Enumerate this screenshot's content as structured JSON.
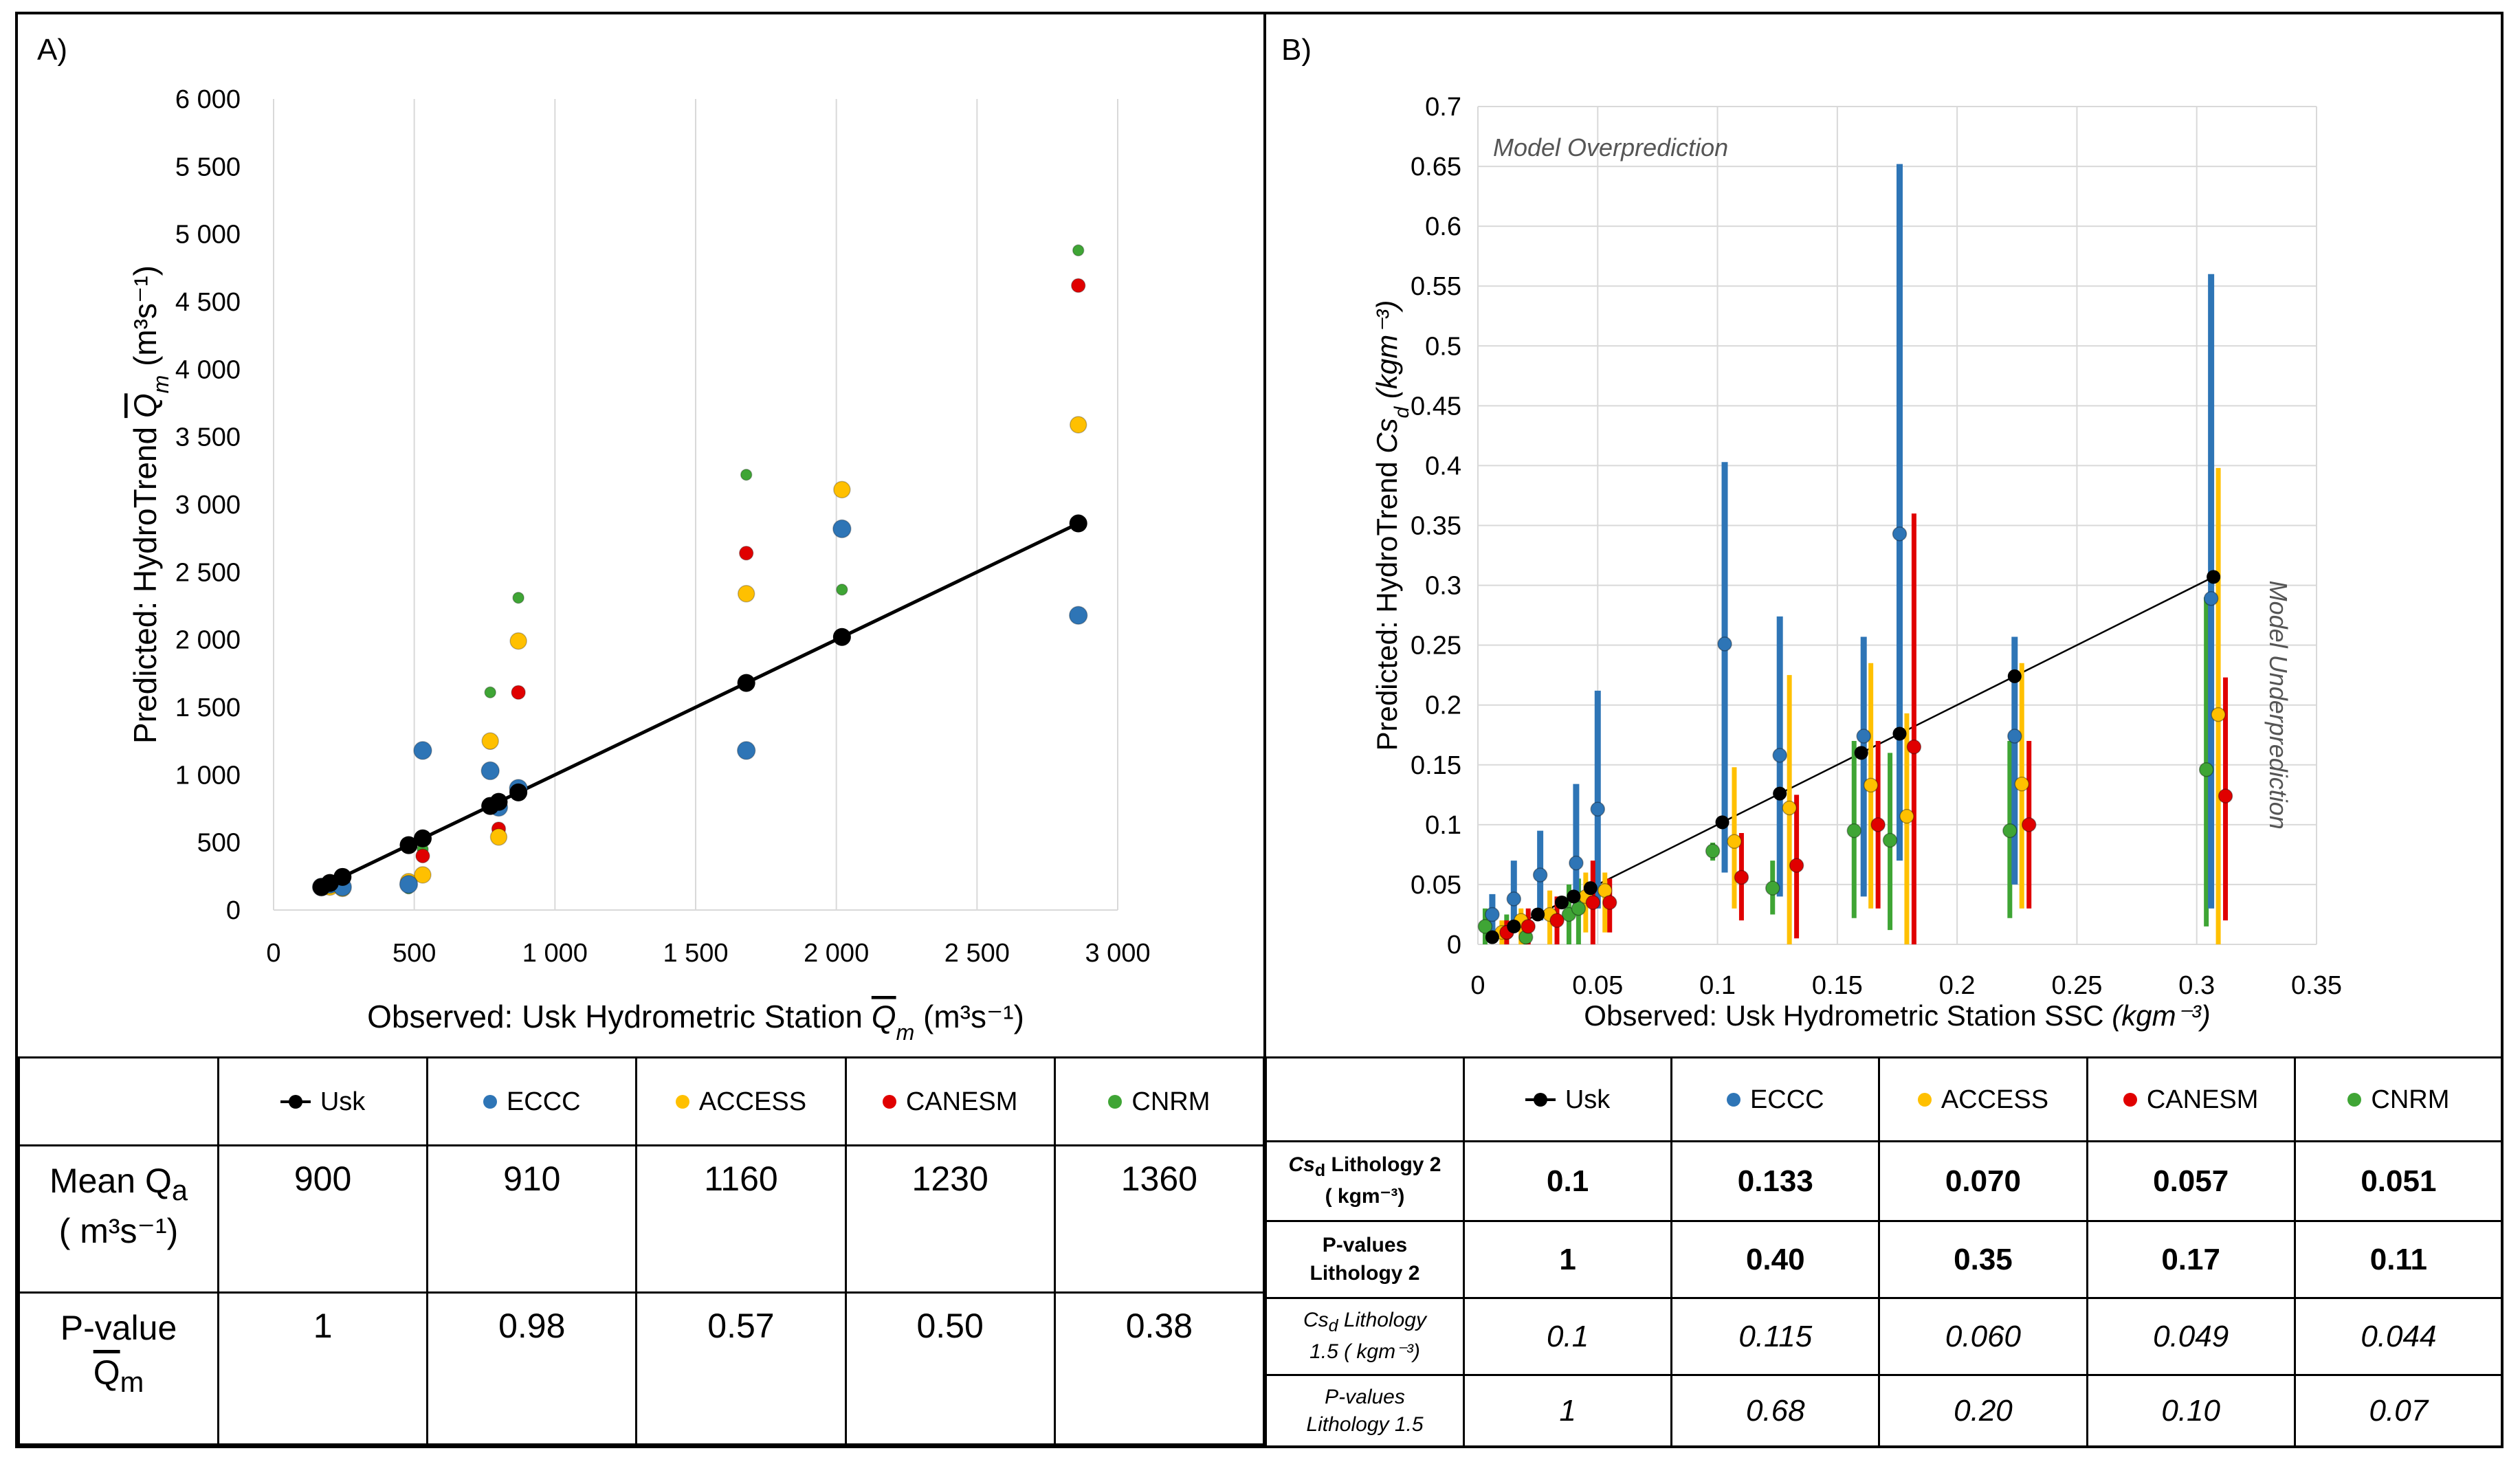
{
  "panel_a": {
    "label": "A)",
    "table": {
      "legend": [
        {
          "name": "Usk",
          "color": "#000000",
          "type": "line"
        },
        {
          "name": "ECCC",
          "color": "#2E75B6",
          "type": "dot"
        },
        {
          "name": "ACCESS",
          "color": "#FFC000",
          "type": "dot"
        },
        {
          "name": "CANESM",
          "color": "#E00000",
          "type": "dot"
        },
        {
          "name": "CNRM",
          "color": "#3FA535",
          "type": "dot"
        }
      ],
      "rows": [
        {
          "label_main": "Mean Q",
          "label_sub": "a",
          "label_unit": "( m³s⁻¹)",
          "values": [
            "900",
            "910",
            "1160",
            "1230",
            "1360"
          ]
        },
        {
          "label_main": "P-value",
          "label_over": "Q",
          "label_sub": "m",
          "values": [
            "1",
            "0.98",
            "0.57",
            "0.50",
            "0.38"
          ]
        }
      ]
    }
  },
  "panel_b": {
    "label": "B)",
    "region_over": "Model Overprediction",
    "region_under": "Model Underprediction",
    "table": {
      "legend": [
        {
          "name": "Usk",
          "color": "#000000",
          "type": "line"
        },
        {
          "name": "ECCC",
          "color": "#2E75B6",
          "type": "dot"
        },
        {
          "name": "ACCESS",
          "color": "#FFC000",
          "type": "dot"
        },
        {
          "name": "CANESM",
          "color": "#E00000",
          "type": "dot"
        },
        {
          "name": "CNRM",
          "color": "#3FA535",
          "type": "dot"
        }
      ],
      "rows": [
        {
          "label_l1": "Cs",
          "label_sub": "d",
          "label_l1b": " Lithology 2",
          "label_l2": "( kgm⁻³)",
          "values": [
            "0.1",
            "0.133",
            "0.070",
            "0.057",
            "0.051"
          ]
        },
        {
          "label_l1": "P-values",
          "label_l2": "Lithology 2",
          "values": [
            "1",
            "0.40",
            "0.35",
            "0.17",
            "0.11"
          ]
        },
        {
          "label_l1": "Cs",
          "label_sub": "d",
          "label_l1b": " Lithology",
          "label_l2": "1.5 ( kgm⁻³)",
          "values": [
            "0.1",
            "0.115",
            "0.060",
            "0.049",
            "0.044"
          ]
        },
        {
          "label_l1": "P-values",
          "label_l2": "Lithology 1.5",
          "values": [
            "1",
            "0.68",
            "0.20",
            "0.10",
            "0.07"
          ]
        }
      ]
    }
  },
  "chart_data": [
    {
      "type": "scatter",
      "xlabel": "Observed: Usk Hydrometric Station Q̄m (m³s⁻¹)",
      "ylabel": "Predicted: HydroTrend Q̄m (m³s⁻¹)",
      "xlim": [
        0,
        3000
      ],
      "ylim": [
        0,
        6000
      ],
      "x_ticks": [
        0,
        500,
        1000,
        1500,
        2000,
        2500,
        3000
      ],
      "x_tick_labels": [
        "0",
        "500",
        "1 000",
        "1 500",
        "2 000",
        "2 500",
        "3 000"
      ],
      "y_ticks": [
        0,
        500,
        1000,
        1500,
        2000,
        2500,
        3000,
        3500,
        4000,
        4500,
        5000,
        5500,
        6000
      ],
      "y_tick_labels": [
        "0",
        "500",
        "1 000",
        "1 500",
        "2 000",
        "2 500",
        "3 000",
        "3 500",
        "4 000",
        "4 500",
        "5 000",
        "5 500",
        "6 000"
      ],
      "grid": "vertical",
      "x": [
        170,
        200,
        245,
        480,
        530,
        770,
        800,
        870,
        1680,
        2020,
        2860
      ],
      "series": [
        {
          "name": "CNRM",
          "color": "#3FA535",
          "values": [
            170,
            160,
            160,
            160,
            450,
            1610,
            740,
            2310,
            3220,
            2370,
            4880
          ]
        },
        {
          "name": "CANESM",
          "color": "#E00000",
          "values": [
            170,
            170,
            170,
            200,
            400,
            1240,
            600,
            1610,
            2640,
            2820,
            4620
          ]
        },
        {
          "name": "ACCESS",
          "color": "#FFC000",
          "values": [
            170,
            170,
            160,
            210,
            260,
            1250,
            540,
            1990,
            2340,
            3110,
            3590
          ]
        },
        {
          "name": "ECCC",
          "color": "#2E75B6",
          "values": [
            170,
            190,
            170,
            190,
            1180,
            1030,
            760,
            900,
            1180,
            2820,
            2180
          ]
        },
        {
          "name": "Usk",
          "color": "#000000",
          "values": [
            170,
            200,
            245,
            480,
            530,
            770,
            800,
            870,
            1680,
            2020,
            2860
          ]
        }
      ]
    },
    {
      "type": "scatter",
      "xlabel": "Observed: Usk Hydrometric Station SSC (kgm⁻³)",
      "ylabel": "Predicted: HydroTrend Csd (kgm⁻³)",
      "xlim": [
        0,
        0.35
      ],
      "ylim": [
        0,
        0.7
      ],
      "x_ticks": [
        0,
        0.05,
        0.1,
        0.15,
        0.2,
        0.25,
        0.3,
        0.35
      ],
      "x_tick_labels": [
        "0",
        "0.05",
        "0.1",
        "0.15",
        "0.2",
        "0.25",
        "0.3",
        "0.35"
      ],
      "y_ticks": [
        0,
        0.05,
        0.1,
        0.15,
        0.2,
        0.25,
        0.3,
        0.35,
        0.4,
        0.45,
        0.5,
        0.55,
        0.6,
        0.65,
        0.7
      ],
      "y_tick_labels": [
        "0",
        "0.05",
        "0.1",
        "0.15",
        "0.2",
        "0.25",
        "0.3",
        "0.35",
        "0.4",
        "0.45",
        "0.5",
        "0.55",
        "0.6",
        "0.65",
        "0.7"
      ],
      "grid": "both",
      "usk": {
        "x": [
          0.006,
          0.015,
          0.025,
          0.035,
          0.04,
          0.047,
          0.102,
          0.126,
          0.16,
          0.176,
          0.224,
          0.307
        ],
        "y": [
          0.006,
          0.015,
          0.025,
          0.035,
          0.04,
          0.047,
          0.102,
          0.126,
          0.16,
          0.176,
          0.224,
          0.307
        ]
      },
      "series": [
        {
          "name": "CNRM",
          "color": "#3FA535",
          "x": [
            0.003,
            0.012,
            0.02,
            0.038,
            0.042,
            0.098,
            0.123,
            0.157,
            0.172,
            0.222,
            0.304
          ],
          "y": [
            0.015,
            0.01,
            0.006,
            0.025,
            0.03,
            0.078,
            0.047,
            0.095,
            0.087,
            0.095,
            0.146
          ],
          "low": [
            0.0,
            0.0,
            0.0,
            0.0,
            0.0,
            0.07,
            0.025,
            0.022,
            0.012,
            0.022,
            0.015
          ],
          "high": [
            0.03,
            0.025,
            0.02,
            0.05,
            0.055,
            0.085,
            0.07,
            0.17,
            0.16,
            0.17,
            0.29
          ]
        },
        {
          "name": "ECCC",
          "color": "#2E75B6",
          "x": [
            0.006,
            0.015,
            0.026,
            0.041,
            0.05,
            0.103,
            0.126,
            0.161,
            0.176,
            0.224,
            0.306
          ],
          "y": [
            0.025,
            0.038,
            0.058,
            0.068,
            0.113,
            0.251,
            0.158,
            0.174,
            0.343,
            0.174,
            0.289
          ],
          "low": [
            0.005,
            0.01,
            0.02,
            0.03,
            0.03,
            0.06,
            0.04,
            0.04,
            0.07,
            0.05,
            0.03
          ],
          "high": [
            0.042,
            0.07,
            0.095,
            0.134,
            0.212,
            0.403,
            0.274,
            0.257,
            0.652,
            0.257,
            0.56
          ]
        },
        {
          "name": "ACCESS",
          "color": "#FFC000",
          "x": [
            0.01,
            0.018,
            0.03,
            0.045,
            0.053,
            0.107,
            0.13,
            0.164,
            0.179,
            0.227,
            0.309
          ],
          "y": [
            0.01,
            0.02,
            0.025,
            0.04,
            0.045,
            0.086,
            0.114,
            0.133,
            0.107,
            0.134,
            0.192
          ],
          "low": [
            0.0,
            0.0,
            0.0,
            0.01,
            0.01,
            0.03,
            0.0,
            0.03,
            0.0,
            0.03,
            0.0
          ],
          "high": [
            0.02,
            0.03,
            0.045,
            0.06,
            0.06,
            0.148,
            0.225,
            0.235,
            0.193,
            0.235,
            0.398
          ]
        },
        {
          "name": "CANESM",
          "color": "#E00000",
          "x": [
            0.012,
            0.021,
            0.033,
            0.048,
            0.055,
            0.11,
            0.133,
            0.167,
            0.182,
            0.23,
            0.312
          ],
          "y": [
            0.01,
            0.015,
            0.02,
            0.035,
            0.035,
            0.056,
            0.066,
            0.1,
            0.165,
            0.1,
            0.124
          ],
          "low": [
            0.0,
            0.0,
            0.0,
            0.0,
            0.01,
            0.02,
            0.005,
            0.03,
            0.0,
            0.03,
            0.02
          ],
          "high": [
            0.02,
            0.03,
            0.04,
            0.07,
            0.055,
            0.093,
            0.125,
            0.17,
            0.36,
            0.17,
            0.223
          ]
        }
      ]
    }
  ]
}
